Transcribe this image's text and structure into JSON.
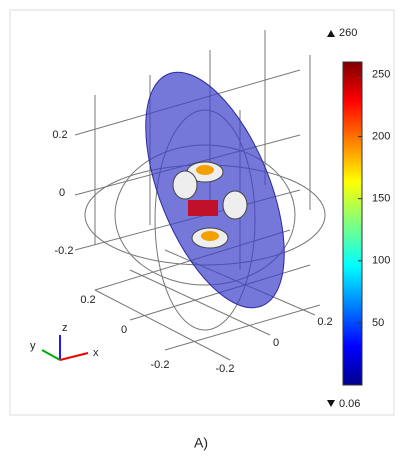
{
  "colorbar": {
    "max": 260,
    "min": 0.06,
    "ticks": [
      50,
      100,
      150,
      200,
      250
    ]
  },
  "axes": {
    "z_ticks": [
      0.2,
      0,
      -0.2
    ],
    "x_ticks": [
      0.2,
      0,
      -0.2
    ],
    "y_ticks": [
      0.2,
      0,
      -0.2
    ]
  },
  "triad": {
    "x": "x",
    "y": "y",
    "z": "z"
  },
  "caption": "A)"
}
